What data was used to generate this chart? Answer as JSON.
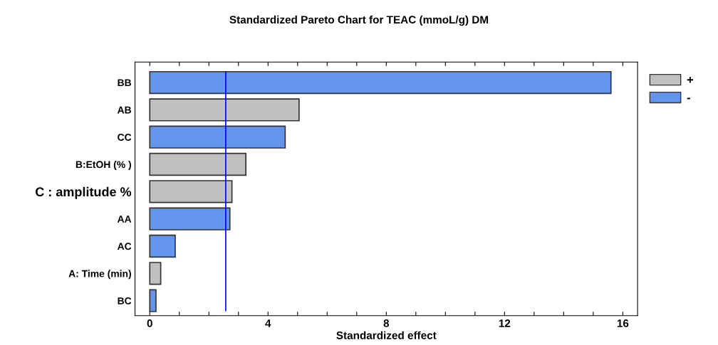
{
  "chart_data": {
    "type": "bar",
    "orientation": "horizontal",
    "title": "Standardized Pareto Chart for TEAC (mmoL/g) DM",
    "xlabel": "Standardized effect",
    "categories": [
      "BB",
      "AB",
      "CC",
      "B:EtOH (% )",
      "C : amplitude %",
      "AA",
      "AC",
      "A: Time (min)",
      "BC"
    ],
    "series": [
      {
        "name": "+",
        "color": "#c0c0c0",
        "values": [
          null,
          5.05,
          null,
          3.25,
          2.78,
          null,
          null,
          0.37,
          null
        ]
      },
      {
        "name": "-",
        "color": "#6495ed",
        "values": [
          15.6,
          null,
          4.58,
          null,
          null,
          2.71,
          0.86,
          null,
          0.21
        ]
      }
    ],
    "xlim": [
      -0.5,
      16.5
    ],
    "xticks": [
      0,
      {
        "value": 1,
        "label": null
      },
      {
        "value": 2,
        "label": null
      },
      {
        "value": 3,
        "label": null
      },
      4,
      {
        "value": 5,
        "label": null
      },
      {
        "value": 6,
        "label": null
      },
      {
        "value": 7,
        "label": null
      },
      8,
      {
        "value": 9,
        "label": null
      },
      {
        "value": 10,
        "label": null
      },
      {
        "value": 11,
        "label": null
      },
      12,
      {
        "value": 13,
        "label": null
      },
      {
        "value": 14,
        "label": null
      },
      {
        "value": 15,
        "label": null
      },
      16
    ],
    "ref_lines": [
      {
        "axis": "x",
        "value": 2.57,
        "color": "#0000ff"
      }
    ],
    "legend": "top right",
    "grid": false
  }
}
